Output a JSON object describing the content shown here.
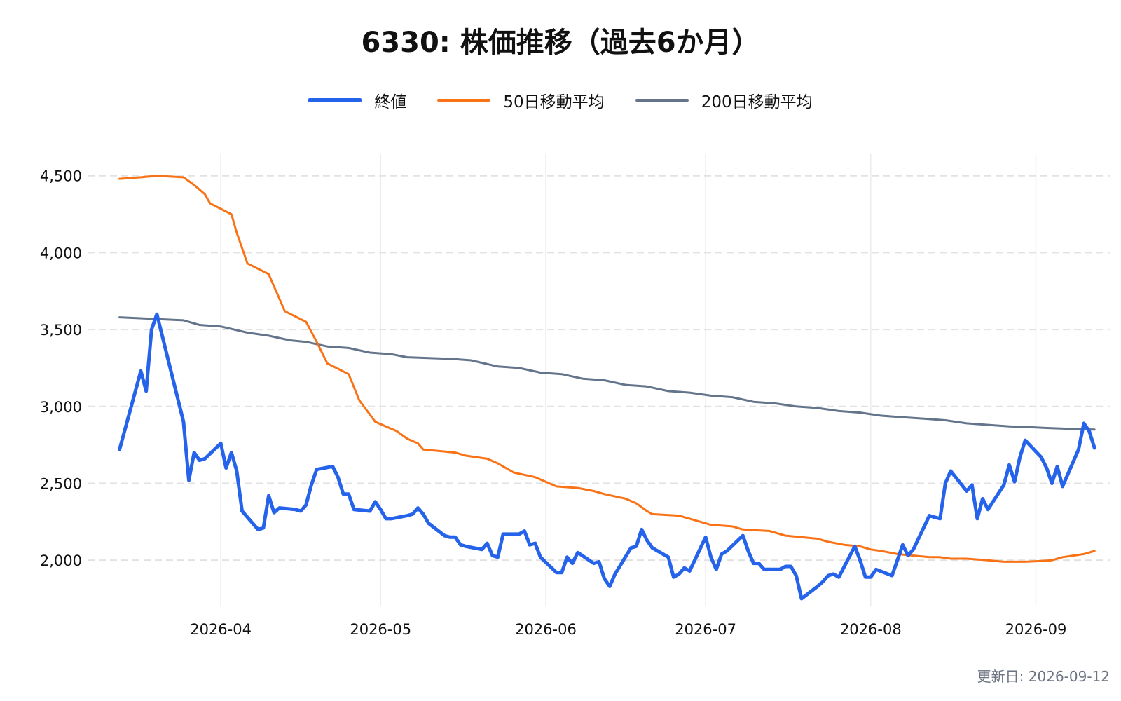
{
  "chart_data": {
    "type": "line",
    "title": "6330: 株価推移（過去6か月）",
    "xlabel": "",
    "ylabel": "",
    "x_ticks": [
      "2026-04",
      "2026-05",
      "2026-06",
      "2026-07",
      "2026-08",
      "2026-09"
    ],
    "y_ticks": [
      2000,
      2500,
      3000,
      3500,
      4000,
      4500
    ],
    "y_tick_labels": [
      "2,000",
      "2,500",
      "3,000",
      "3,500",
      "4,000",
      "4,500"
    ],
    "xlim": [
      "2026-03-07",
      "2026-09-15"
    ],
    "ylim": [
      1700,
      4640
    ],
    "grid": true,
    "legend_position": "top-center",
    "series": [
      {
        "name": "終値",
        "color": "#2563eb",
        "points": [
          [
            "2026-03-13",
            2720
          ],
          [
            "2026-03-17",
            3230
          ],
          [
            "2026-03-18",
            3100
          ],
          [
            "2026-03-19",
            3500
          ],
          [
            "2026-03-20",
            3600
          ],
          [
            "2026-03-25",
            2900
          ],
          [
            "2026-03-26",
            2520
          ],
          [
            "2026-03-27",
            2700
          ],
          [
            "2026-03-28",
            2650
          ],
          [
            "2026-03-29",
            2660
          ],
          [
            "2026-04-01",
            2760
          ],
          [
            "2026-04-02",
            2600
          ],
          [
            "2026-04-03",
            2700
          ],
          [
            "2026-04-04",
            2580
          ],
          [
            "2026-04-05",
            2320
          ],
          [
            "2026-04-08",
            2200
          ],
          [
            "2026-04-09",
            2210
          ],
          [
            "2026-04-10",
            2420
          ],
          [
            "2026-04-11",
            2310
          ],
          [
            "2026-04-12",
            2340
          ],
          [
            "2026-04-15",
            2330
          ],
          [
            "2026-04-16",
            2320
          ],
          [
            "2026-04-17",
            2360
          ],
          [
            "2026-04-18",
            2490
          ],
          [
            "2026-04-19",
            2590
          ],
          [
            "2026-04-22",
            2610
          ],
          [
            "2026-04-23",
            2540
          ],
          [
            "2026-04-24",
            2430
          ],
          [
            "2026-04-25",
            2430
          ],
          [
            "2026-04-26",
            2330
          ],
          [
            "2026-04-29",
            2320
          ],
          [
            "2026-04-30",
            2380
          ],
          [
            "2026-05-01",
            2330
          ],
          [
            "2026-05-02",
            2270
          ],
          [
            "2026-05-03",
            2270
          ],
          [
            "2026-05-06",
            2290
          ],
          [
            "2026-05-07",
            2300
          ],
          [
            "2026-05-08",
            2340
          ],
          [
            "2026-05-09",
            2300
          ],
          [
            "2026-05-10",
            2240
          ],
          [
            "2026-05-13",
            2160
          ],
          [
            "2026-05-14",
            2150
          ],
          [
            "2026-05-15",
            2150
          ],
          [
            "2026-05-16",
            2100
          ],
          [
            "2026-05-17",
            2090
          ],
          [
            "2026-05-20",
            2070
          ],
          [
            "2026-05-21",
            2110
          ],
          [
            "2026-05-22",
            2030
          ],
          [
            "2026-05-23",
            2020
          ],
          [
            "2026-05-24",
            2170
          ],
          [
            "2026-05-27",
            2170
          ],
          [
            "2026-05-28",
            2190
          ],
          [
            "2026-05-29",
            2100
          ],
          [
            "2026-05-30",
            2110
          ],
          [
            "2026-05-31",
            2020
          ],
          [
            "2026-06-03",
            1920
          ],
          [
            "2026-06-04",
            1920
          ],
          [
            "2026-06-05",
            2020
          ],
          [
            "2026-06-06",
            1980
          ],
          [
            "2026-06-07",
            2050
          ],
          [
            "2026-06-10",
            1980
          ],
          [
            "2026-06-11",
            1990
          ],
          [
            "2026-06-12",
            1880
          ],
          [
            "2026-06-13",
            1830
          ],
          [
            "2026-06-14",
            1910
          ],
          [
            "2026-06-17",
            2080
          ],
          [
            "2026-06-18",
            2090
          ],
          [
            "2026-06-19",
            2200
          ],
          [
            "2026-06-20",
            2130
          ],
          [
            "2026-06-21",
            2080
          ],
          [
            "2026-06-24",
            2020
          ],
          [
            "2026-06-25",
            1890
          ],
          [
            "2026-06-26",
            1910
          ],
          [
            "2026-06-27",
            1950
          ],
          [
            "2026-06-28",
            1930
          ],
          [
            "2026-07-01",
            2150
          ],
          [
            "2026-07-02",
            2020
          ],
          [
            "2026-07-03",
            1940
          ],
          [
            "2026-07-04",
            2040
          ],
          [
            "2026-07-05",
            2060
          ],
          [
            "2026-07-08",
            2160
          ],
          [
            "2026-07-09",
            2060
          ],
          [
            "2026-07-10",
            1980
          ],
          [
            "2026-07-11",
            1980
          ],
          [
            "2026-07-12",
            1940
          ],
          [
            "2026-07-15",
            1940
          ],
          [
            "2026-07-16",
            1960
          ],
          [
            "2026-07-17",
            1960
          ],
          [
            "2026-07-18",
            1900
          ],
          [
            "2026-07-19",
            1750
          ],
          [
            "2026-07-22",
            1830
          ],
          [
            "2026-07-23",
            1860
          ],
          [
            "2026-07-24",
            1900
          ],
          [
            "2026-07-25",
            1910
          ],
          [
            "2026-07-26",
            1890
          ],
          [
            "2026-07-29",
            2090
          ],
          [
            "2026-07-30",
            2000
          ],
          [
            "2026-07-31",
            1890
          ],
          [
            "2026-08-01",
            1890
          ],
          [
            "2026-08-02",
            1940
          ],
          [
            "2026-08-05",
            1900
          ],
          [
            "2026-08-06",
            2000
          ],
          [
            "2026-08-07",
            2100
          ],
          [
            "2026-08-08",
            2030
          ],
          [
            "2026-08-09",
            2070
          ],
          [
            "2026-08-12",
            2290
          ],
          [
            "2026-08-13",
            2280
          ],
          [
            "2026-08-14",
            2270
          ],
          [
            "2026-08-15",
            2500
          ],
          [
            "2026-08-16",
            2580
          ],
          [
            "2026-08-19",
            2450
          ],
          [
            "2026-08-20",
            2490
          ],
          [
            "2026-08-21",
            2270
          ],
          [
            "2026-08-22",
            2400
          ],
          [
            "2026-08-23",
            2330
          ],
          [
            "2026-08-26",
            2490
          ],
          [
            "2026-08-27",
            2620
          ],
          [
            "2026-08-28",
            2510
          ],
          [
            "2026-08-29",
            2670
          ],
          [
            "2026-08-30",
            2780
          ],
          [
            "2026-09-02",
            2670
          ],
          [
            "2026-09-03",
            2600
          ],
          [
            "2026-09-04",
            2500
          ],
          [
            "2026-09-05",
            2610
          ],
          [
            "2026-09-06",
            2480
          ],
          [
            "2026-09-09",
            2720
          ],
          [
            "2026-09-10",
            2890
          ],
          [
            "2026-09-11",
            2840
          ],
          [
            "2026-09-12",
            2730
          ]
        ]
      },
      {
        "name": "50日移動平均",
        "color": "#f97316",
        "points": [
          [
            "2026-03-13",
            4480
          ],
          [
            "2026-03-17",
            4490
          ],
          [
            "2026-03-20",
            4500
          ],
          [
            "2026-03-25",
            4490
          ],
          [
            "2026-03-27",
            4440
          ],
          [
            "2026-03-29",
            4380
          ],
          [
            "2026-03-30",
            4320
          ],
          [
            "2026-04-03",
            4250
          ],
          [
            "2026-04-04",
            4130
          ],
          [
            "2026-04-06",
            3930
          ],
          [
            "2026-04-10",
            3860
          ],
          [
            "2026-04-12",
            3700
          ],
          [
            "2026-04-13",
            3620
          ],
          [
            "2026-04-17",
            3550
          ],
          [
            "2026-04-19",
            3420
          ],
          [
            "2026-04-21",
            3280
          ],
          [
            "2026-04-25",
            3210
          ],
          [
            "2026-04-27",
            3040
          ],
          [
            "2026-04-30",
            2900
          ],
          [
            "2026-05-04",
            2840
          ],
          [
            "2026-05-06",
            2790
          ],
          [
            "2026-05-08",
            2760
          ],
          [
            "2026-05-09",
            2720
          ],
          [
            "2026-05-15",
            2700
          ],
          [
            "2026-05-17",
            2680
          ],
          [
            "2026-05-21",
            2660
          ],
          [
            "2026-05-23",
            2630
          ],
          [
            "2026-05-26",
            2570
          ],
          [
            "2026-05-30",
            2540
          ],
          [
            "2026-06-03",
            2480
          ],
          [
            "2026-06-07",
            2470
          ],
          [
            "2026-06-10",
            2450
          ],
          [
            "2026-06-12",
            2430
          ],
          [
            "2026-06-16",
            2400
          ],
          [
            "2026-06-18",
            2370
          ],
          [
            "2026-06-20",
            2320
          ],
          [
            "2026-06-21",
            2300
          ],
          [
            "2026-06-26",
            2290
          ],
          [
            "2026-06-30",
            2250
          ],
          [
            "2026-07-02",
            2230
          ],
          [
            "2026-07-06",
            2220
          ],
          [
            "2026-07-08",
            2200
          ],
          [
            "2026-07-13",
            2190
          ],
          [
            "2026-07-16",
            2160
          ],
          [
            "2026-07-19",
            2150
          ],
          [
            "2026-07-22",
            2140
          ],
          [
            "2026-07-24",
            2120
          ],
          [
            "2026-07-27",
            2100
          ],
          [
            "2026-07-30",
            2090
          ],
          [
            "2026-08-01",
            2070
          ],
          [
            "2026-08-03",
            2060
          ],
          [
            "2026-08-06",
            2040
          ],
          [
            "2026-08-09",
            2030
          ],
          [
            "2026-08-12",
            2020
          ],
          [
            "2026-08-14",
            2020
          ],
          [
            "2026-08-16",
            2010
          ],
          [
            "2026-08-19",
            2010
          ],
          [
            "2026-08-23",
            2000
          ],
          [
            "2026-08-26",
            1990
          ],
          [
            "2026-08-28",
            1990
          ],
          [
            "2026-08-30",
            1990
          ],
          [
            "2026-09-02",
            1995
          ],
          [
            "2026-09-04",
            2000
          ],
          [
            "2026-09-06",
            2020
          ],
          [
            "2026-09-08",
            2030
          ],
          [
            "2026-09-10",
            2040
          ],
          [
            "2026-09-12",
            2060
          ]
        ]
      },
      {
        "name": "200日移動平均",
        "color": "#64748b",
        "points": [
          [
            "2026-03-13",
            3580
          ],
          [
            "2026-03-19",
            3570
          ],
          [
            "2026-03-25",
            3560
          ],
          [
            "2026-03-28",
            3530
          ],
          [
            "2026-04-01",
            3520
          ],
          [
            "2026-04-06",
            3480
          ],
          [
            "2026-04-10",
            3460
          ],
          [
            "2026-04-14",
            3430
          ],
          [
            "2026-04-17",
            3420
          ],
          [
            "2026-04-21",
            3390
          ],
          [
            "2026-04-25",
            3380
          ],
          [
            "2026-04-29",
            3350
          ],
          [
            "2026-05-03",
            3340
          ],
          [
            "2026-05-06",
            3320
          ],
          [
            "2026-05-10",
            3315
          ],
          [
            "2026-05-14",
            3310
          ],
          [
            "2026-05-18",
            3300
          ],
          [
            "2026-05-23",
            3260
          ],
          [
            "2026-05-27",
            3250
          ],
          [
            "2026-05-31",
            3220
          ],
          [
            "2026-06-04",
            3210
          ],
          [
            "2026-06-08",
            3180
          ],
          [
            "2026-06-12",
            3170
          ],
          [
            "2026-06-16",
            3140
          ],
          [
            "2026-06-20",
            3130
          ],
          [
            "2026-06-24",
            3100
          ],
          [
            "2026-06-28",
            3090
          ],
          [
            "2026-07-02",
            3070
          ],
          [
            "2026-07-06",
            3060
          ],
          [
            "2026-07-10",
            3030
          ],
          [
            "2026-07-14",
            3020
          ],
          [
            "2026-07-18",
            3000
          ],
          [
            "2026-07-22",
            2990
          ],
          [
            "2026-07-26",
            2970
          ],
          [
            "2026-07-30",
            2960
          ],
          [
            "2026-08-03",
            2940
          ],
          [
            "2026-08-07",
            2930
          ],
          [
            "2026-08-11",
            2920
          ],
          [
            "2026-08-15",
            2910
          ],
          [
            "2026-08-19",
            2890
          ],
          [
            "2026-08-23",
            2880
          ],
          [
            "2026-08-27",
            2870
          ],
          [
            "2026-08-31",
            2865
          ],
          [
            "2026-09-03",
            2860
          ],
          [
            "2026-09-07",
            2855
          ],
          [
            "2026-09-12",
            2850
          ]
        ]
      }
    ]
  },
  "updated_label": "更新日: 2026-09-12"
}
